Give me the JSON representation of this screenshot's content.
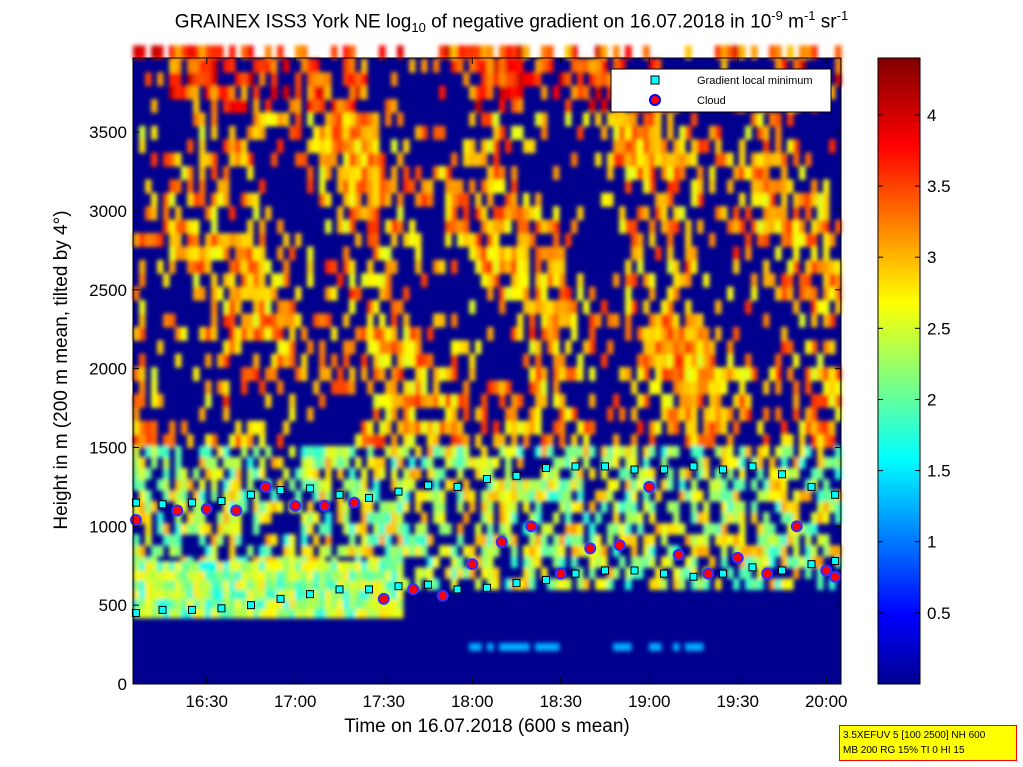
{
  "title": {
    "prefix": "GRAINEX ISS3 York NE log",
    "sub": "10",
    "middle": " of negative gradient on 16.07.2018 in 10",
    "sup1": "-9",
    "mid2": " m",
    "sup2": "-1",
    "mid3": " sr",
    "sup3": "-1"
  },
  "xlabel": "Time on 16.07.2018 (600 s mean)",
  "ylabel": "Height in m (200 m mean, tilted by 4°)",
  "infobox": {
    "line1": "3.5XEFUV 5 [100 2500] NH 600",
    "line2": "MB 200 RG 15% TI 0 HI 15"
  },
  "legend": {
    "items": [
      {
        "label": "Gradient local minimum",
        "color": "#00ffff",
        "marker": "square"
      },
      {
        "label": "Cloud",
        "color": "#ff0000",
        "marker": "circle",
        "edge": "#0000ff"
      }
    ],
    "placement": "top-right"
  },
  "chart_data": {
    "type": "heatmap",
    "title": "GRAINEX ISS3 York NE log10 of negative gradient on 16.07.2018 in 10^-9 m^-1 sr^-1",
    "xlabel": "Time on 16.07.2018 (600 s mean)",
    "ylabel": "Height in m (200 m mean, tilted by 4°)",
    "x_ticks": [
      "16:30",
      "17:00",
      "17:30",
      "18:00",
      "18:30",
      "19:00",
      "19:30",
      "20:00"
    ],
    "x_tick_values_min": [
      990,
      1020,
      1050,
      1080,
      1110,
      1140,
      1170,
      1200
    ],
    "xlim_min": [
      965,
      1205
    ],
    "y_ticks": [
      0,
      500,
      1000,
      1500,
      2000,
      2500,
      3000,
      3500
    ],
    "ylim": [
      0,
      3970
    ],
    "colorbar": {
      "ticks": [
        0.5,
        1,
        1.5,
        2,
        2.5,
        3,
        3.5,
        4
      ],
      "range": [
        0,
        4.4
      ],
      "colormap": "jet"
    },
    "series": [
      {
        "name": "Gradient local minimum",
        "marker": "square",
        "color": "#00ffff",
        "x_min": [
          966,
          975,
          985,
          995,
          1005,
          1015,
          1025,
          1035,
          1045,
          1055,
          1065,
          1075,
          1085,
          1095,
          1105,
          1115,
          1125,
          1135,
          1145,
          1155,
          1165,
          1175,
          1185,
          1195,
          1203
        ],
        "y_m": [
          450,
          470,
          470,
          480,
          500,
          540,
          570,
          600,
          600,
          620,
          630,
          600,
          610,
          640,
          660,
          700,
          720,
          720,
          700,
          680,
          700,
          740,
          720,
          760,
          780
        ]
      },
      {
        "name": "Gradient local minimum (upper)",
        "marker": "square",
        "color": "#00ffff",
        "x_min": [
          966,
          975,
          985,
          995,
          1005,
          1015,
          1025,
          1035,
          1045,
          1055,
          1065,
          1075,
          1085,
          1095,
          1105,
          1115,
          1125,
          1135,
          1145,
          1155,
          1165,
          1175,
          1185,
          1195,
          1203
        ],
        "y_m": [
          1150,
          1140,
          1150,
          1160,
          1200,
          1230,
          1240,
          1200,
          1180,
          1220,
          1260,
          1250,
          1300,
          1320,
          1370,
          1380,
          1380,
          1360,
          1360,
          1380,
          1360,
          1380,
          1330,
          1250,
          1200
        ]
      },
      {
        "name": "Cloud",
        "marker": "circle",
        "color": "#ff0000",
        "x_min": [
          966,
          980,
          990,
          1000,
          1010,
          1020,
          1030,
          1040,
          1050,
          1060,
          1070,
          1080,
          1090,
          1100,
          1110,
          1120,
          1130,
          1140,
          1150,
          1160,
          1170,
          1180,
          1190,
          1200,
          1203
        ],
        "y_m": [
          1040,
          1100,
          1110,
          1100,
          1250,
          1130,
          1130,
          1150,
          540,
          600,
          560,
          760,
          900,
          1000,
          700,
          860,
          880,
          1250,
          820,
          700,
          800,
          700,
          1000,
          720,
          680
        ]
      }
    ]
  }
}
